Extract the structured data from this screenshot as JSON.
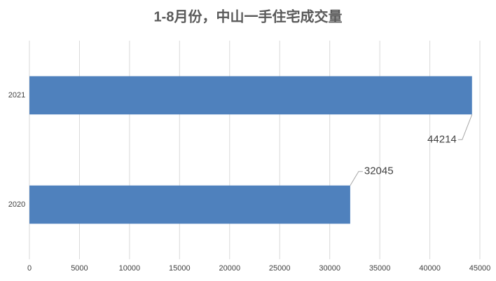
{
  "chart_data": {
    "type": "bar",
    "orientation": "horizontal",
    "title": "1-8月份，中山一手住宅成交量",
    "categories": [
      "2020",
      "2021"
    ],
    "values": [
      32045,
      44214
    ],
    "color": "#4f81bd",
    "xlim": [
      0,
      45000
    ],
    "xticks": [
      0,
      5000,
      10000,
      15000,
      20000,
      25000,
      30000,
      35000,
      40000,
      45000
    ],
    "grid": true
  }
}
